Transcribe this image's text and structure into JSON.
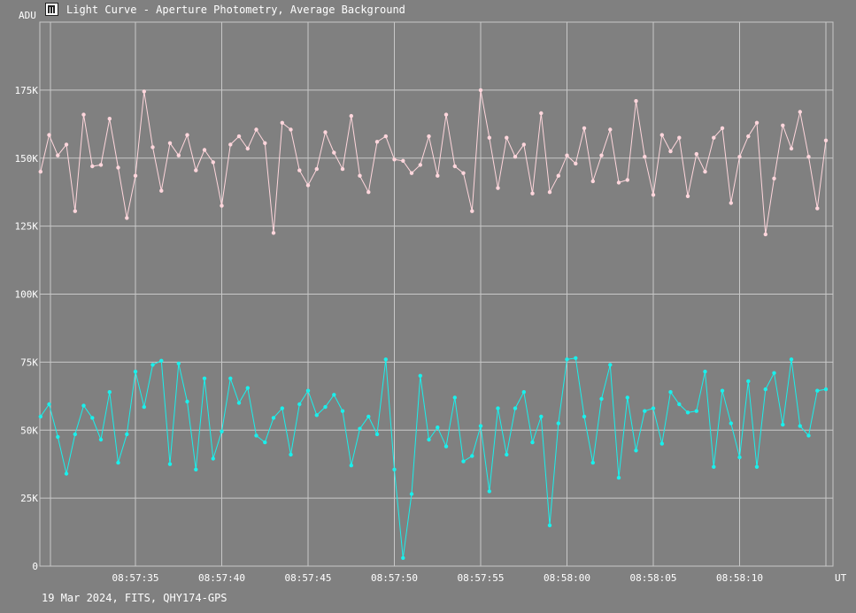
{
  "window": {
    "title": "Light Curve - Aperture Photometry, Average Background",
    "icon": "light-curve-app-icon"
  },
  "footer": "19 Mar 2024, FITS, QHY174-GPS",
  "colors": {
    "background": "#808080",
    "grid": "#c8c8c8",
    "text": "#ffffff",
    "series_pink": "#ffd6dc",
    "series_cyan": "#19f0ec"
  },
  "chart_data": {
    "type": "line",
    "ylabel": "ADU",
    "xlabel": "UT",
    "ylim": [
      0,
      200000
    ],
    "xlim": [
      "08:57:30",
      "08:58:15"
    ],
    "grid": true,
    "y_ticks": [
      0,
      25000,
      50000,
      75000,
      100000,
      125000,
      150000,
      175000
    ],
    "y_tick_labels": [
      "0",
      "25K",
      "50K",
      "75K",
      "100K",
      "125K",
      "150K",
      "175K"
    ],
    "x_tick_labels": [
      "08:57:35",
      "08:57:40",
      "08:57:45",
      "08:57:50",
      "08:57:55",
      "08:58:00",
      "08:58:05",
      "08:58:10"
    ],
    "x_start": "08:57:29.5",
    "x_step_seconds": 0.5,
    "series": [
      {
        "color": "#ffd6dc",
        "values": [
          145000,
          158500,
          151000,
          155000,
          130500,
          166000,
          147000,
          147500,
          164500,
          146500,
          128000,
          143500,
          174500,
          154000,
          138000,
          155500,
          151000,
          158500,
          145500,
          153000,
          148500,
          132500,
          155000,
          158000,
          153500,
          160500,
          155500,
          122500,
          163000,
          160500,
          145500,
          140000,
          146000,
          159500,
          152000,
          146000,
          165500,
          143500,
          137500,
          156000,
          158000,
          149500,
          149000,
          144500,
          147500,
          158000,
          143500,
          166000,
          147000,
          144500,
          130500,
          175000,
          157500,
          139000,
          157500,
          150500,
          155000,
          137000,
          166500,
          137500,
          143500,
          151000,
          148000,
          161000,
          141500,
          151000,
          160500,
          141000,
          142000,
          171000,
          150500,
          136500,
          158500,
          152500,
          157500,
          136000,
          151500,
          145000,
          157500,
          161000,
          133500,
          150500,
          158000,
          163000,
          122000,
          142500,
          162000,
          153500,
          167000,
          150500,
          131500,
          156500
        ]
      },
      {
        "color": "#19f0ec",
        "values": [
          55000,
          59500,
          47500,
          34000,
          48500,
          59000,
          54500,
          46500,
          64000,
          38000,
          48500,
          71500,
          58500,
          74000,
          75500,
          37500,
          74500,
          60500,
          35500,
          69000,
          39500,
          49500,
          69000,
          60000,
          65500,
          48000,
          45500,
          54500,
          58000,
          41000,
          59500,
          64500,
          55500,
          58500,
          63000,
          57000,
          37000,
          50500,
          55000,
          48500,
          76000,
          35500,
          3000,
          26500,
          70000,
          46500,
          51000,
          44000,
          62000,
          38500,
          40500,
          51500,
          27500,
          58000,
          41000,
          58000,
          64000,
          45500,
          55000,
          15000,
          52500,
          76000,
          76500,
          55000,
          38000,
          61500,
          74000,
          32500,
          62000,
          42500,
          57000,
          58000,
          45000,
          64000,
          59500,
          56500,
          57000,
          71500,
          36500,
          64500,
          52500,
          40000,
          68000,
          36500,
          65000,
          71000,
          52000,
          76000,
          51500,
          48000,
          64500,
          65000
        ]
      }
    ]
  }
}
